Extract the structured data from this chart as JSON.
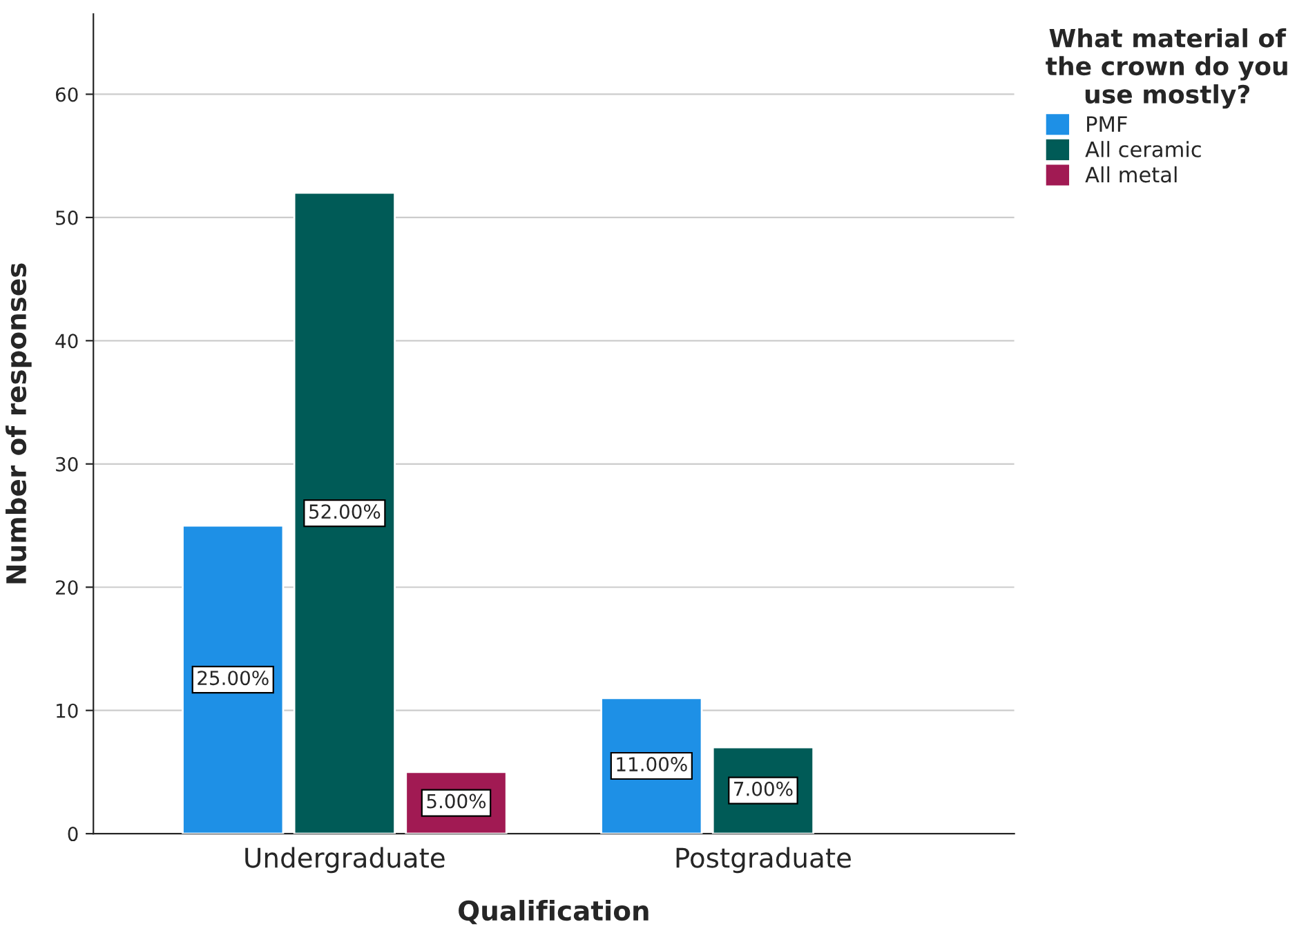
{
  "chart_data": {
    "type": "bar",
    "xlabel": "Qualification",
    "ylabel": "Number of responses",
    "legend_title": "What material of the crown do you use mostly?",
    "categories": [
      "Undergraduate",
      "Postgraduate"
    ],
    "series": [
      {
        "name": "PMF",
        "color": "#1e90e6",
        "values": [
          25,
          11
        ],
        "value_labels": [
          "25.00%",
          "11.00%"
        ]
      },
      {
        "name": "All ceramic",
        "color": "#005b57",
        "values": [
          52,
          7
        ],
        "value_labels": [
          "52.00%",
          "7.00%"
        ]
      },
      {
        "name": "All metal",
        "color": "#a11a53",
        "values": [
          5,
          null
        ],
        "value_labels": [
          "5.00%",
          null
        ]
      }
    ],
    "ylim": [
      0,
      66.5
    ],
    "yticks": [
      0,
      10,
      20,
      30,
      40,
      50,
      60
    ],
    "grid": "y",
    "legend": "top right"
  }
}
